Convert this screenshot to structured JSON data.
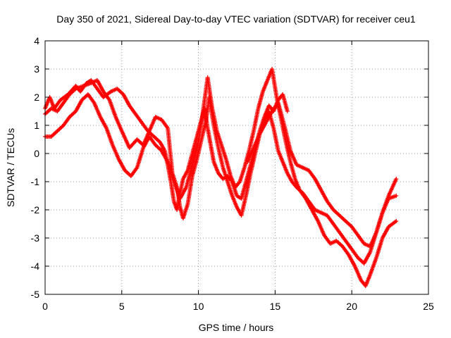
{
  "chart_data": {
    "type": "scatter",
    "title": "Day 350 of 2021, Sidereal Day-to-day VTEC variation (SDTVAR) for receiver ceu1",
    "xlabel": "GPS time / hours",
    "ylabel": "SDTVAR / TECUs",
    "xlim": [
      0,
      25
    ],
    "ylim": [
      -5,
      4
    ],
    "xticks": [
      0,
      5,
      10,
      15,
      20,
      25
    ],
    "yticks": [
      -5,
      -4,
      -3,
      -2,
      -1,
      0,
      1,
      2,
      3,
      4
    ],
    "grid": true,
    "marker": "+",
    "color": "#ff0000",
    "series": [
      {
        "x": [
          0.0,
          0.3,
          0.6,
          1.0,
          1.5,
          2.0,
          2.3,
          2.7,
          3.0,
          3.4,
          3.8,
          4.3,
          4.7,
          5.1,
          5.5,
          5.9,
          6.3,
          6.7,
          7.1,
          7.5,
          7.8,
          8.0,
          8.2,
          8.4,
          8.6,
          8.8,
          9.0,
          9.3,
          9.6,
          9.9,
          10.2,
          10.4,
          10.6,
          10.8,
          11.0,
          11.3,
          11.6,
          11.9,
          12.2,
          12.5,
          12.8,
          13.1,
          13.4,
          13.7,
          14.0,
          14.3,
          14.6,
          14.9,
          15.2,
          15.5,
          15.8
        ],
        "y": [
          1.6,
          2.0,
          1.6,
          1.9,
          2.1,
          2.4,
          2.2,
          2.5,
          2.6,
          2.3,
          2.0,
          2.2,
          2.3,
          2.1,
          1.7,
          1.4,
          1.1,
          0.8,
          0.6,
          0.4,
          0.1,
          -0.4,
          -1.0,
          -1.7,
          -2.0,
          -1.4,
          -0.9,
          -0.6,
          0.0,
          0.6,
          1.2,
          1.6,
          0.9,
          0.3,
          -0.3,
          -0.7,
          -0.9,
          -0.8,
          -1.0,
          -1.5,
          -1.6,
          -1.0,
          -0.4,
          0.2,
          0.8,
          1.3,
          1.7,
          1.5,
          1.9,
          2.1,
          1.5
        ]
      },
      {
        "x": [
          0.0,
          0.4,
          0.8,
          1.2,
          1.6,
          2.0,
          2.5,
          3.0,
          3.4,
          3.8,
          4.2,
          4.6,
          5.0,
          5.5,
          6.0,
          6.4,
          6.8,
          7.2,
          7.6,
          8.0,
          8.3,
          8.6,
          8.8,
          9.0,
          9.3,
          9.6,
          9.9,
          10.2,
          10.5,
          10.7,
          11.0,
          11.3,
          11.6,
          11.9,
          12.2,
          12.5,
          12.8,
          13.1,
          13.4,
          13.7,
          14.0,
          14.3,
          14.6,
          14.9,
          15.2,
          15.5,
          15.8,
          16.1,
          16.4,
          16.8,
          17.2,
          17.6,
          18.0,
          18.4,
          18.8,
          19.2,
          19.6,
          20.0,
          20.4,
          20.8,
          21.2,
          21.6,
          22.0,
          22.4,
          22.9
        ],
        "y": [
          1.4,
          1.6,
          1.5,
          1.8,
          2.1,
          2.3,
          2.4,
          2.5,
          2.6,
          2.2,
          1.9,
          1.3,
          0.8,
          0.2,
          0.5,
          0.3,
          0.8,
          1.3,
          1.2,
          0.9,
          -0.7,
          -1.2,
          -1.9,
          -2.3,
          -1.8,
          -0.8,
          -0.2,
          0.5,
          1.2,
          2.0,
          1.0,
          0.2,
          -0.5,
          -1.0,
          -1.5,
          -1.9,
          -2.2,
          -1.5,
          -0.7,
          0.0,
          0.7,
          1.2,
          1.5,
          0.9,
          0.1,
          -0.3,
          -0.7,
          -1.0,
          -1.2,
          -1.4,
          -1.7,
          -2.0,
          -2.1,
          -2.2,
          -2.5,
          -2.8,
          -3.1,
          -3.4,
          -3.7,
          -3.9,
          -3.5,
          -2.8,
          -2.1,
          -1.6,
          -1.5
        ]
      },
      {
        "x": [
          0.0,
          0.4,
          0.8,
          1.2,
          1.6,
          2.0,
          2.4,
          2.8,
          3.2,
          3.6,
          4.0,
          4.4,
          4.8,
          5.2,
          5.6,
          6.0,
          6.4,
          6.8,
          7.2,
          7.6,
          8.0,
          8.4,
          8.8,
          9.2,
          9.6,
          10.0,
          10.3,
          10.6,
          10.9,
          11.2,
          11.5,
          11.8,
          12.1,
          12.4,
          12.7,
          13.0,
          13.3,
          13.6,
          13.9,
          14.2,
          14.5,
          14.8,
          15.1,
          15.4,
          15.7,
          16.0,
          16.3,
          16.6,
          17.0,
          17.4,
          17.8,
          18.2,
          18.6,
          19.0,
          19.4,
          19.8,
          20.2,
          20.6,
          20.9,
          21.2,
          21.6,
          22.0,
          22.4,
          22.9
        ],
        "y": [
          0.6,
          0.6,
          0.8,
          1.0,
          1.3,
          1.5,
          1.9,
          2.1,
          1.8,
          1.3,
          0.9,
          0.3,
          -0.2,
          -0.6,
          -0.8,
          -0.5,
          0.2,
          0.6,
          0.3,
          0.1,
          -0.3,
          -1.0,
          -1.6,
          -1.2,
          -0.4,
          0.4,
          1.5,
          2.7,
          1.6,
          0.8,
          0.3,
          -0.2,
          -0.8,
          -1.2,
          -1.0,
          -0.5,
          0.1,
          0.8,
          1.6,
          2.2,
          2.6,
          3.0,
          2.0,
          1.2,
          0.4,
          -0.3,
          -0.9,
          -1.3,
          -1.6,
          -2.0,
          -2.4,
          -2.9,
          -3.2,
          -3.1,
          -3.3,
          -3.6,
          -4.0,
          -4.5,
          -4.7,
          -4.3,
          -3.7,
          -3.0,
          -2.6,
          -2.4
        ]
      },
      {
        "x": [
          13.2,
          13.6,
          14.0,
          14.4,
          14.8,
          15.2,
          15.6,
          16.0,
          16.4,
          16.8,
          17.2,
          17.6,
          18.0,
          18.4,
          18.8,
          19.2,
          19.6,
          20.0,
          20.4,
          20.8,
          21.2,
          21.6,
          22.0,
          22.4,
          22.9
        ],
        "y": [
          -0.3,
          0.2,
          0.7,
          1.1,
          1.5,
          1.8,
          1.0,
          0.1,
          -0.4,
          -0.5,
          -0.6,
          -0.9,
          -1.3,
          -1.7,
          -2.0,
          -2.2,
          -2.4,
          -2.6,
          -2.9,
          -3.2,
          -3.3,
          -2.8,
          -2.1,
          -1.5,
          -0.9
        ]
      }
    ]
  }
}
